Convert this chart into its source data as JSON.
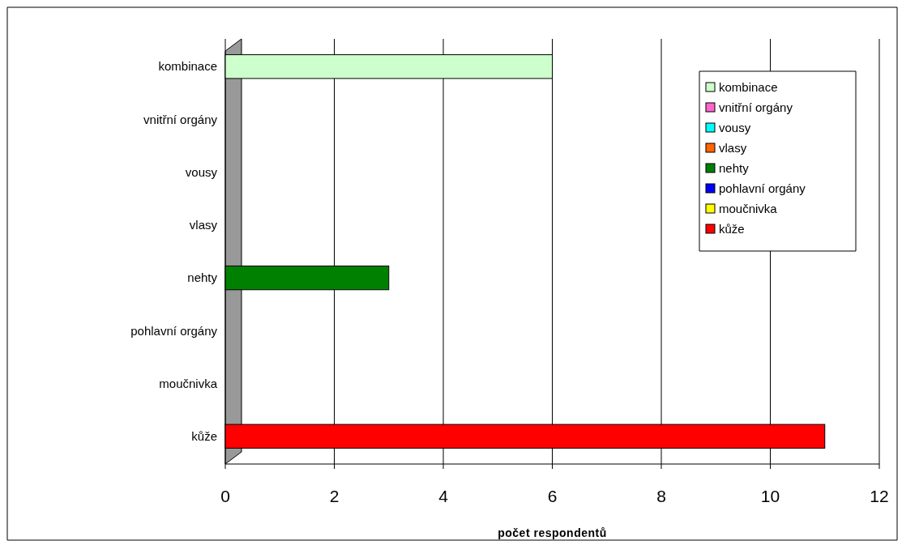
{
  "chart_data": {
    "type": "bar",
    "orientation": "horizontal",
    "xlabel": "počet respondentů",
    "categories": [
      "kombinace",
      "vnitřní orgány",
      "vousy",
      "vlasy",
      "nehty",
      "pohlavní orgány",
      "moučnivka",
      "kůže"
    ],
    "series": [
      {
        "name": "kombinace",
        "color": "#ccffcc",
        "values": [
          6,
          null,
          null,
          null,
          null,
          null,
          null,
          null
        ]
      },
      {
        "name": "vnitřní orgány",
        "color": "#ff66cc",
        "values": [
          null,
          0,
          null,
          null,
          null,
          null,
          null,
          null
        ]
      },
      {
        "name": "vousy",
        "color": "#00ffff",
        "values": [
          null,
          null,
          0,
          null,
          null,
          null,
          null,
          null
        ]
      },
      {
        "name": "vlasy",
        "color": "#ff6600",
        "values": [
          null,
          null,
          null,
          0,
          null,
          null,
          null,
          null
        ]
      },
      {
        "name": "nehty",
        "color": "#008000",
        "values": [
          null,
          null,
          null,
          null,
          3,
          null,
          null,
          null
        ]
      },
      {
        "name": "pohlavní orgány",
        "color": "#0000ff",
        "values": [
          null,
          null,
          null,
          null,
          null,
          0,
          null,
          null
        ]
      },
      {
        "name": "moučnivka",
        "color": "#ffff00",
        "values": [
          null,
          null,
          null,
          null,
          null,
          null,
          0,
          null
        ]
      },
      {
        "name": "kůže",
        "color": "#ff0000",
        "values": [
          null,
          null,
          null,
          null,
          null,
          null,
          null,
          11
        ]
      }
    ],
    "xlim": [
      0,
      12
    ],
    "xticks": [
      0,
      2,
      4,
      6,
      8,
      10,
      12
    ],
    "grid": "x",
    "legend": "top right"
  }
}
